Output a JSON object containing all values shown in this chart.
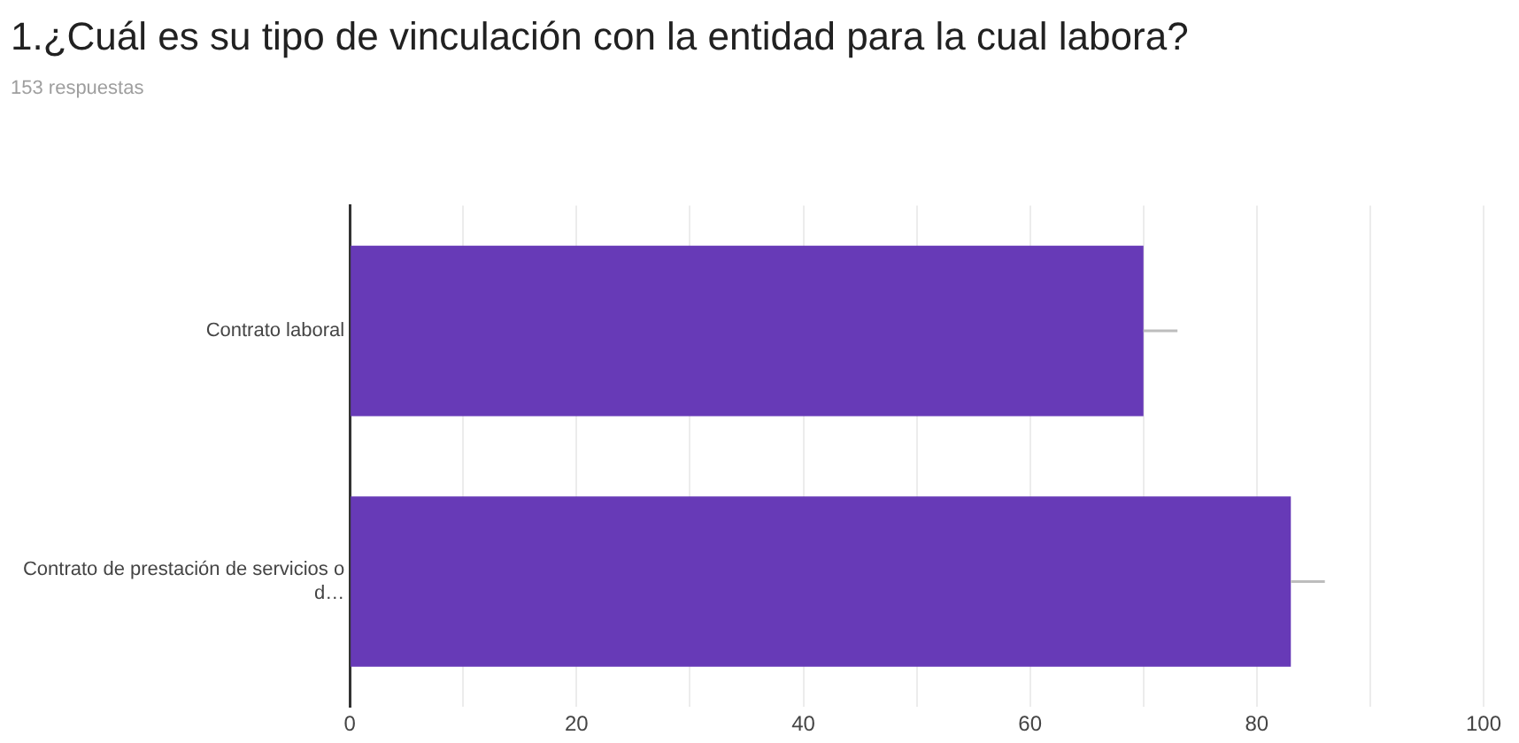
{
  "chart_data": {
    "type": "bar",
    "orientation": "horizontal",
    "title": "1.¿Cuál es su tipo de vinculación con la entidad para la cual labora?",
    "subtitle": "153 respuestas",
    "categories": [
      "Contrato laboral",
      "Contrato de prestación de servicios o d…"
    ],
    "values": [
      70,
      83
    ],
    "color": "#673ab7",
    "errors": [
      [
        70,
        73
      ],
      [
        83,
        86
      ]
    ],
    "xlim": [
      0,
      100
    ],
    "xticks": [
      0,
      {
        "value": 10,
        "label": null
      },
      20,
      {
        "value": 30,
        "label": null
      },
      40,
      {
        "value": 50,
        "label": null
      },
      60,
      {
        "value": 70,
        "label": null
      },
      80,
      {
        "value": 90,
        "label": null
      },
      100
    ],
    "grid": "x"
  }
}
